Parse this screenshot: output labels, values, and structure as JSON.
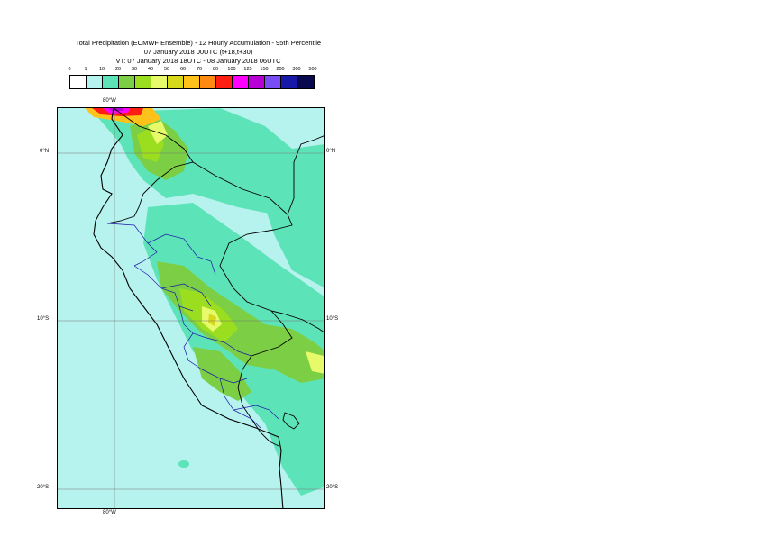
{
  "title": {
    "line1": "Total Precipitation (ECMWF Ensemble) - 12 Hourly Accumulation - 95th Percentile",
    "line2": "07 January 2018 00UTC (t+18,t+30)",
    "line3": "VT: 07 January 2018 18UTC - 08 January 2018 06UTC"
  },
  "legend": {
    "labels": [
      "0",
      "1",
      "10",
      "20",
      "30",
      "40",
      "50",
      "60",
      "70",
      "80",
      "100",
      "125",
      "150",
      "200",
      "300",
      "500"
    ],
    "colors": [
      "#ffffff",
      "#b6f2ee",
      "#5de3b8",
      "#7ccf44",
      "#9bde1f",
      "#e7fa6a",
      "#d6d91a",
      "#ffc21a",
      "#ff8a12",
      "#ff1e12",
      "#ff00ff",
      "#b600d6",
      "#7a4cf6",
      "#1818a8",
      "#090950"
    ]
  },
  "map": {
    "labels": {
      "top_lon": "80°W",
      "bottom_lon": "80°W",
      "lat_0_left": "0°N",
      "lat_0_right": "0°N",
      "lat_10_left": "10°S",
      "lat_10_right": "10°S",
      "lat_20_left": "20°S",
      "lat_20_right": "20°S"
    },
    "colors": {
      "ocean": "#b6f2ee",
      "light": "#5de3b8",
      "green": "#7ccf44",
      "yellowgreen": "#9bde1f",
      "yellow": "#e7fa6a",
      "olive": "#d6d91a",
      "orange": "#ffc21a",
      "red": "#ff1e12",
      "magenta": "#ff00ff",
      "purple": "#b600d6",
      "coast": "#000000",
      "border": "#1a1aa8"
    }
  }
}
